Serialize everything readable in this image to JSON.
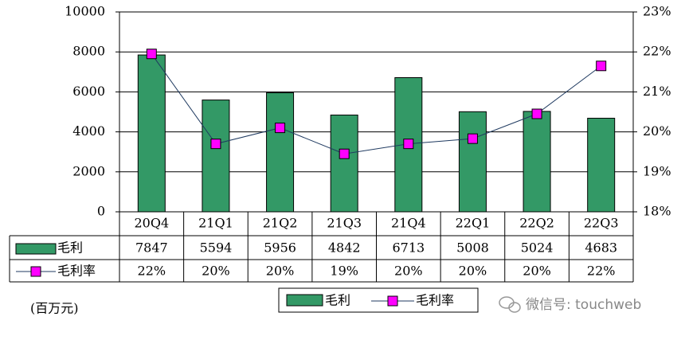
{
  "chart_data": {
    "type": "bar",
    "categories": [
      "20Q4",
      "21Q1",
      "21Q2",
      "21Q3",
      "21Q4",
      "22Q1",
      "22Q2",
      "22Q3"
    ],
    "series": [
      {
        "name": "毛利",
        "color": "#339966",
        "values": [
          7847,
          5594,
          5956,
          4842,
          6713,
          5008,
          5024,
          4683
        ]
      },
      {
        "name": "毛利率",
        "color": "#ff00ff",
        "line_color": "#1f3a60",
        "axis": "y2",
        "values": [
          21.95,
          19.7,
          20.1,
          19.45,
          19.7,
          19.83,
          20.45,
          21.65
        ],
        "value_labels": [
          "22%",
          "20%",
          "20%",
          "19%",
          "20%",
          "20%",
          "20%",
          "22%"
        ]
      }
    ],
    "ylim": [
      0,
      10000
    ],
    "yticks": [
      0,
      2000,
      4000,
      6000,
      8000,
      10000
    ],
    "y2lim": [
      18,
      23
    ],
    "y2ticks": [
      {
        "value": 18,
        "label": "18%"
      },
      {
        "value": 19,
        "label": "19%"
      },
      {
        "value": 20,
        "label": "20%"
      },
      {
        "value": 21,
        "label": "21%"
      },
      {
        "value": 22,
        "label": "22%"
      },
      {
        "value": 23,
        "label": "23%"
      }
    ],
    "grid": true,
    "unit_note": "(百万元)",
    "watermark": "微信号: touchweb"
  }
}
